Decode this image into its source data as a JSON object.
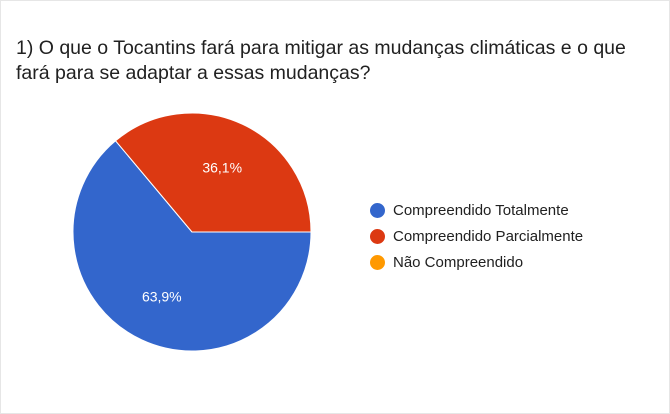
{
  "title": "1) O que o Tocantins fará para mitigar as mudanças climáticas e o que fará para se adaptar a essas mudanças?",
  "chart_data": {
    "type": "pie",
    "title": "1) O que o Tocantins fará para mitigar as mudanças climáticas e o que fará para se adaptar a essas mudanças?",
    "slices": [
      {
        "label": "Compreendido Totalmente",
        "value": 63.9,
        "display": "63,9%",
        "color": "#3366cc"
      },
      {
        "label": "Compreendido Parcialmente",
        "value": 36.1,
        "display": "36,1%",
        "color": "#dc3912"
      },
      {
        "label": "Não Compreendido",
        "value": 0,
        "display": "",
        "color": "#ff9900"
      }
    ],
    "legend_position": "right"
  }
}
